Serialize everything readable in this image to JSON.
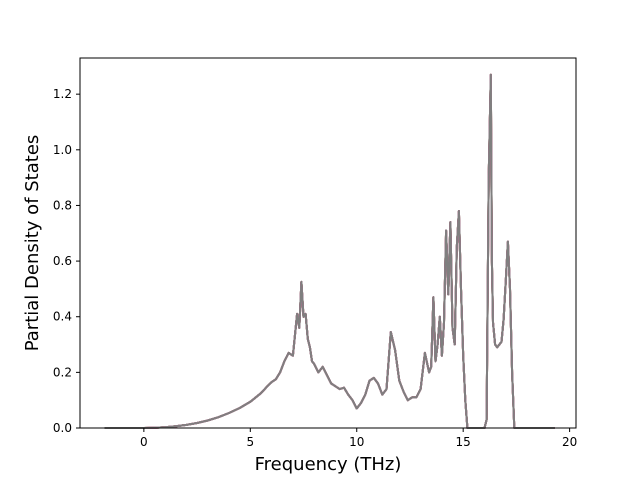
{
  "chart_data": {
    "type": "line",
    "title": "",
    "xlabel": "Frequency (THz)",
    "ylabel": "Partial Density of States",
    "xlim": [
      -3.0,
      20.3
    ],
    "ylim": [
      0.0,
      1.33
    ],
    "xticks": [
      0,
      5,
      10,
      15,
      20
    ],
    "xtick_labels": [
      "0",
      "5",
      "10",
      "15",
      "20"
    ],
    "yticks": [
      0.0,
      0.2,
      0.4,
      0.6,
      0.8,
      1.0,
      1.2
    ],
    "ytick_labels": [
      "0.0",
      "0.2",
      "0.4",
      "0.6",
      "0.8",
      "1.0",
      "1.2"
    ],
    "grid": false,
    "legend": "none",
    "line_colors": [
      "#1f77b4",
      "#ff7f0e",
      "#2ca02c",
      "#d62728",
      "#9467bd",
      "#8c564b",
      "#e377c2",
      "#7f7f7f"
    ],
    "series": [
      {
        "x": [
          -1.85,
          0.0,
          0.5,
          1.0,
          1.5,
          2.0,
          2.5,
          3.0,
          3.5,
          4.0,
          4.5,
          5.0,
          5.5,
          5.8,
          6.0,
          6.2,
          6.4,
          6.6,
          6.8,
          7.0,
          7.2,
          7.3,
          7.4,
          7.5,
          7.6,
          7.7,
          7.8,
          7.9,
          8.0,
          8.2,
          8.4,
          8.6,
          8.8,
          9.0,
          9.2,
          9.4,
          9.6,
          9.8,
          10.0,
          10.2,
          10.4,
          10.6,
          10.8,
          11.0,
          11.2,
          11.4,
          11.6,
          11.8,
          12.0,
          12.2,
          12.4,
          12.6,
          12.8,
          13.0,
          13.2,
          13.4,
          13.5,
          13.6,
          13.7,
          13.8,
          13.9,
          14.0,
          14.1,
          14.2,
          14.3,
          14.4,
          14.5,
          14.6,
          14.7,
          14.8,
          14.9,
          15.0,
          15.1,
          15.2,
          15.3,
          15.4,
          15.5,
          15.6,
          15.8,
          16.0,
          16.1,
          16.2,
          16.3,
          16.35,
          16.4,
          16.5,
          16.6,
          16.7,
          16.8,
          16.9,
          17.0,
          17.1,
          17.2,
          17.3,
          17.4,
          17.5,
          17.6,
          18.0,
          19.3
        ],
        "y": [
          0.0,
          0.0,
          0.001,
          0.003,
          0.006,
          0.011,
          0.018,
          0.027,
          0.039,
          0.054,
          0.072,
          0.094,
          0.125,
          0.15,
          0.165,
          0.175,
          0.2,
          0.24,
          0.27,
          0.26,
          0.41,
          0.36,
          0.525,
          0.4,
          0.41,
          0.32,
          0.29,
          0.24,
          0.23,
          0.2,
          0.22,
          0.19,
          0.16,
          0.15,
          0.14,
          0.145,
          0.12,
          0.1,
          0.07,
          0.09,
          0.12,
          0.17,
          0.18,
          0.16,
          0.12,
          0.14,
          0.345,
          0.28,
          0.17,
          0.13,
          0.1,
          0.11,
          0.11,
          0.14,
          0.27,
          0.2,
          0.22,
          0.47,
          0.24,
          0.3,
          0.4,
          0.26,
          0.38,
          0.71,
          0.48,
          0.74,
          0.36,
          0.3,
          0.65,
          0.78,
          0.5,
          0.26,
          0.1,
          0.0,
          0.0,
          0.0,
          0.0,
          0.0,
          0.0,
          0.0,
          0.03,
          0.9,
          1.27,
          0.6,
          0.38,
          0.3,
          0.29,
          0.3,
          0.31,
          0.39,
          0.53,
          0.67,
          0.5,
          0.2,
          0.0,
          0.0,
          0.0,
          0.0,
          0.0
        ]
      }
    ]
  }
}
